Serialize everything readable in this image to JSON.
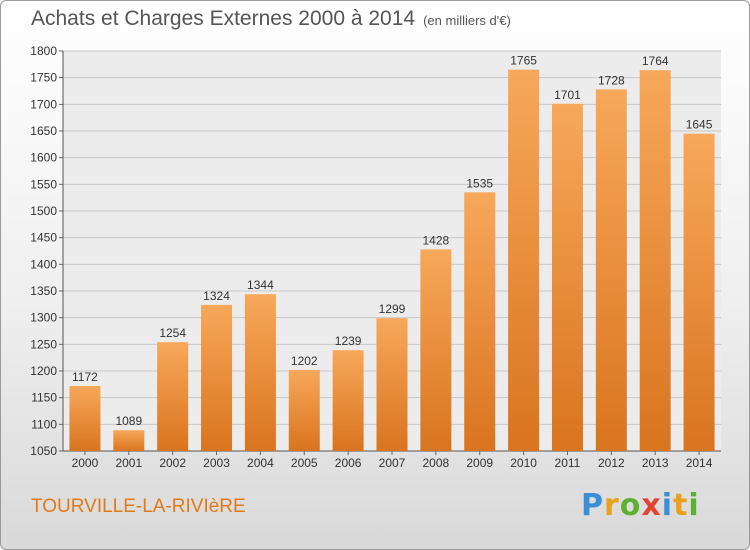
{
  "chart_data": {
    "type": "bar",
    "title": "Achats et Charges Externes 2000 à 2014",
    "subtitle": "(en milliers d'€)",
    "categories": [
      "2000",
      "2001",
      "2002",
      "2003",
      "2004",
      "2005",
      "2006",
      "2007",
      "2008",
      "2009",
      "2010",
      "2011",
      "2012",
      "2013",
      "2014"
    ],
    "values": [
      1172,
      1089,
      1254,
      1324,
      1344,
      1202,
      1239,
      1299,
      1428,
      1535,
      1765,
      1701,
      1728,
      1764,
      1645
    ],
    "ylim": [
      1050,
      1800
    ],
    "yticks": [
      1050,
      1100,
      1150,
      1200,
      1250,
      1300,
      1350,
      1400,
      1450,
      1500,
      1550,
      1600,
      1650,
      1700,
      1750,
      1800
    ],
    "xlabel": "",
    "ylabel": "",
    "grid": true,
    "bar_color": "#f0923a",
    "bar_color_light": "#f7a85a",
    "bar_color_dark": "#d9741f"
  },
  "footer": {
    "commune": "TOURVILLE-LA-RIVIèRE",
    "logo_letters": [
      "P",
      "r",
      "o",
      "x",
      "i",
      "t",
      "i"
    ],
    "logo_colors": [
      "#3a8fd6",
      "#e8a21d",
      "#5cb130",
      "#e0452f",
      "#3a8fd6",
      "#e8a21d",
      "#5cb130"
    ]
  }
}
